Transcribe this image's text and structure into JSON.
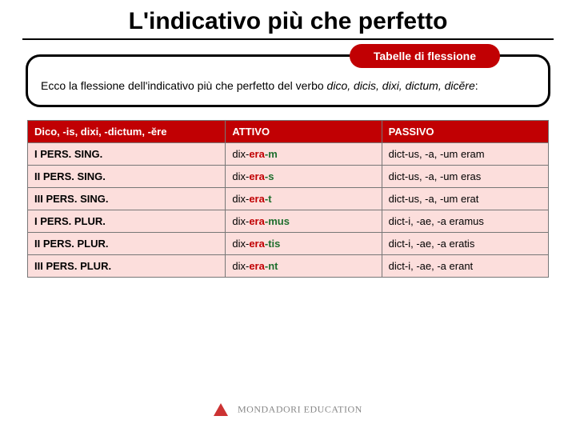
{
  "title": "L'indicativo più che perfetto",
  "badge": "Tabelle di flessione",
  "caption_parts": {
    "pre": "Ecco la flessione dell'indicativo più che perfetto del verbo ",
    "verb": "dico, dicis, dixi, dictum, dicĕre",
    "post": ":"
  },
  "headers": {
    "c0": "Dico, -is, dixi, -dictum, -ĕre",
    "c1": "ATTIVO",
    "c2": "PASSIVO"
  },
  "rows": [
    {
      "label": "I PERS. SING.",
      "attivo": [
        {
          "t": "dix-",
          "c": "s1"
        },
        {
          "t": "era",
          "c": "s2"
        },
        {
          "t": "-m",
          "c": "s3"
        }
      ],
      "passivo": "dict-us, -a, -um eram"
    },
    {
      "label": "II PERS. SING.",
      "attivo": [
        {
          "t": "dix-",
          "c": "s1"
        },
        {
          "t": "era",
          "c": "s2"
        },
        {
          "t": "-s",
          "c": "s3"
        }
      ],
      "passivo": "dict-us, -a, -um eras"
    },
    {
      "label": "III PERS. SING.",
      "attivo": [
        {
          "t": "dix-",
          "c": "s1"
        },
        {
          "t": "era",
          "c": "s2"
        },
        {
          "t": "-t",
          "c": "s3"
        }
      ],
      "passivo": "dict-us, -a, -um erat"
    },
    {
      "label": "I PERS. PLUR.",
      "attivo": [
        {
          "t": "dix-",
          "c": "s1"
        },
        {
          "t": "era",
          "c": "s2"
        },
        {
          "t": "-mus",
          "c": "s3"
        }
      ],
      "passivo": "dict-i, -ae, -a eramus"
    },
    {
      "label": "II PERS. PLUR.",
      "attivo": [
        {
          "t": "dix-",
          "c": "s1"
        },
        {
          "t": "era",
          "c": "s2"
        },
        {
          "t": "-tis",
          "c": "s3"
        }
      ],
      "passivo": "dict-i, -ae, -a eratis"
    },
    {
      "label": "III PERS. PLUR.",
      "attivo": [
        {
          "t": "dix-",
          "c": "s1"
        },
        {
          "t": "era",
          "c": "s2"
        },
        {
          "t": "-nt",
          "c": "s3"
        }
      ],
      "passivo": "dict-i, -ae, -a erant"
    }
  ],
  "footer": "MONDADORI EDUCATION",
  "colors": {
    "brand_red": "#c10003",
    "row_bg": "#fcdedc",
    "stem_green": "#1f6f2e"
  }
}
